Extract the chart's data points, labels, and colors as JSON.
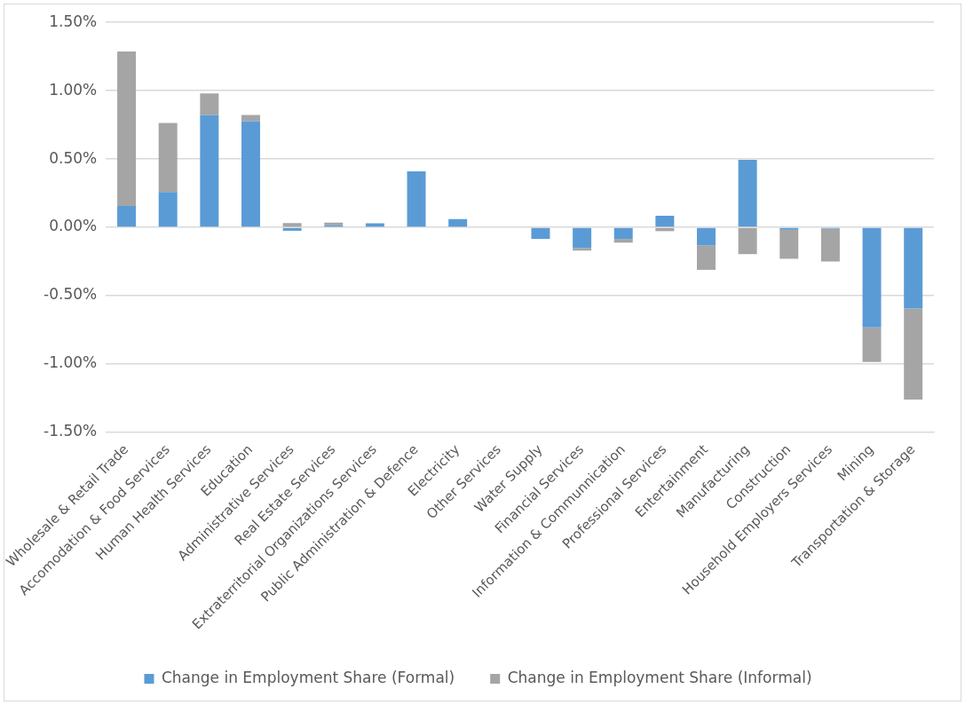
{
  "chart_data": {
    "type": "bar",
    "stacked": true,
    "categories": [
      "Wholesale & Retail Trade",
      "Accomodation & Food Services",
      "Human Health Services",
      "Education",
      "Administrative Services",
      "Real Estate Services",
      "Extraterritorial Organizations Services",
      "Public Administration & Defence",
      "Electricity",
      "Other Services",
      "Water Supply",
      "Financial Services",
      "Information & Communnication",
      "Professional Services",
      "Entertainment",
      "Manufacturing",
      "Construction",
      "Household Employers Services",
      "Mining",
      "Transportation & Storage"
    ],
    "series": [
      {
        "name": "Change in Employment Share (Formal)",
        "color": "#5b9bd5",
        "values": [
          0.157,
          0.258,
          0.82,
          0.777,
          -0.025,
          0.015,
          0.03,
          0.41,
          0.061,
          null,
          -0.085,
          -0.152,
          -0.085,
          0.084,
          -0.131,
          0.494,
          -0.018,
          -0.01,
          -0.733,
          -0.594
        ]
      },
      {
        "name": "Change in Employment Share (Informal)",
        "color": "#a5a5a5",
        "values": [
          1.13,
          0.506,
          0.16,
          0.045,
          0.031,
          0.019,
          0,
          0,
          0,
          null,
          null,
          -0.018,
          -0.027,
          -0.028,
          -0.18,
          -0.196,
          -0.212,
          -0.24,
          -0.252,
          -0.666
        ]
      }
    ],
    "ylim": [
      -1.5,
      1.5
    ],
    "yticks": [
      {
        "value": -1.5,
        "label": "-1.50%"
      },
      {
        "value": -1,
        "label": "-1.00%"
      },
      {
        "value": -0.5,
        "label": "-0.50%"
      },
      {
        "value": 0,
        "label": "0.00%"
      },
      {
        "value": 0.5,
        "label": "0.50%"
      },
      {
        "value": 1,
        "label": "1.00%"
      },
      {
        "value": 1.5,
        "label": "1.50%"
      }
    ],
    "grid": "y",
    "legend": "bottom"
  }
}
